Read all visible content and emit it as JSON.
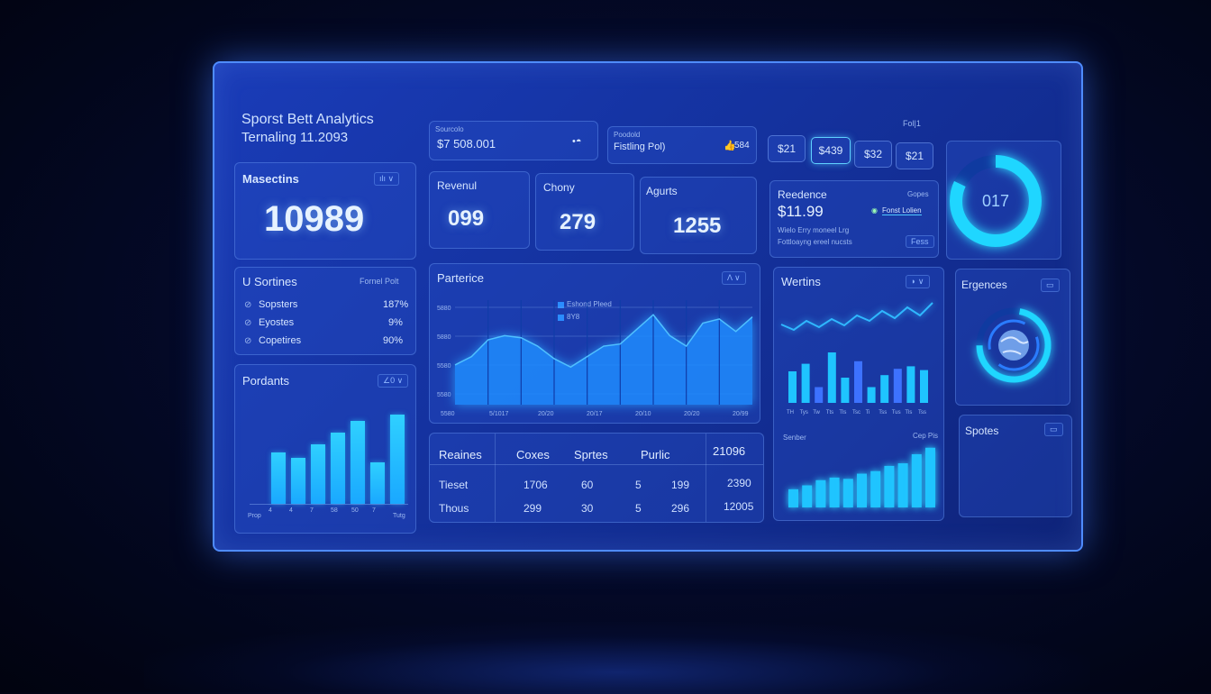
{
  "header": {
    "title": "Sporst Bett Analytics",
    "subtitle": "Ternaling 11.2093",
    "corner_label": "Fol|1"
  },
  "filters": [
    {
      "label": "Sourcolo",
      "value": "$7 508.001",
      "icon": "coin-icon"
    },
    {
      "label": "Poodold",
      "value": "Fistling Pol)",
      "icon": "thumb-icon",
      "extra": "584"
    }
  ],
  "chips": [
    "$21",
    "$439",
    "$32",
    "$21"
  ],
  "active_chip": 1,
  "donut": {
    "value": "017",
    "fraction": 0.82
  },
  "kpis": {
    "masectins": {
      "label": "Masectins",
      "value": "10989",
      "badge": "ılı ∨"
    },
    "revenul": {
      "label": "Revenul",
      "value": "099"
    },
    "chony": {
      "label": "Chony",
      "value": "279"
    },
    "agurts": {
      "label": "Agurts",
      "value": "1255"
    }
  },
  "reedence": {
    "label": "Reedence",
    "corner": "Gopes",
    "value": "$11.99",
    "link": "Fonst Lolien",
    "line1": "Wielo Erry moneel Lrg",
    "line2": "Fottloayng ereel nucsts",
    "tag": "Fess"
  },
  "sortines": {
    "title": "U Sortines",
    "col": "Fornel Polt",
    "rows": [
      {
        "label": "Sopsters",
        "value": "187%"
      },
      {
        "label": "Eyostes",
        "value": "9%"
      },
      {
        "label": "Copetires",
        "value": "90%"
      }
    ]
  },
  "pordants": {
    "title": "Pordants",
    "badge": "∠0 ∨",
    "values": [
      0.52,
      0.46,
      0.6,
      0.72,
      0.84,
      0.42,
      0.9
    ],
    "ticks": [
      "Prop",
      "4",
      "4",
      "7",
      "58",
      "50",
      "7",
      "Tutg"
    ]
  },
  "parterice": {
    "title": "Parterice",
    "badge": "Λ ∨",
    "legend": [
      "Eshond Pleed",
      "8Y8"
    ],
    "ylabels": [
      "5880",
      "5880",
      "5580",
      "5580"
    ],
    "xlabels": [
      "5580",
      "5/1017",
      "20/20",
      "20/17",
      "20/10",
      "20/20",
      "20/99"
    ],
    "series": [
      0.38,
      0.46,
      0.62,
      0.66,
      0.64,
      0.56,
      0.44,
      0.36,
      0.46,
      0.56,
      0.58,
      0.72,
      0.86,
      0.66,
      0.56,
      0.78,
      0.82,
      0.7,
      0.84
    ]
  },
  "table": {
    "headers": [
      "Reaines",
      "Coxes",
      "Sprtes",
      "Purlic",
      "21096"
    ],
    "rows": [
      [
        "Tieset",
        "1706",
        "60",
        "5",
        "199",
        "2390"
      ],
      [
        "Thous",
        "299",
        "30",
        "5",
        "296",
        "12005"
      ]
    ]
  },
  "wertins": {
    "title": "Wertins",
    "line": [
      0.42,
      0.3,
      0.5,
      0.36,
      0.54,
      0.4,
      0.62,
      0.5,
      0.72,
      0.56,
      0.8,
      0.62,
      0.9
    ],
    "bars": [
      0.5,
      0.62,
      0.25,
      0.8,
      0.4,
      0.66,
      0.25,
      0.44,
      0.54,
      0.58,
      0.52
    ],
    "ticks": [
      "TH",
      "Tys",
      "Tw",
      "Tts",
      "Tls",
      "Tsc",
      "Ti",
      "Tss",
      "Tus",
      "Tls",
      "Tss"
    ],
    "footer_left": "Senber",
    "footer_right": "Cep Pis",
    "bottom_bars": [
      0.28,
      0.34,
      0.42,
      0.46,
      0.44,
      0.52,
      0.56,
      0.64,
      0.68,
      0.82,
      0.92
    ]
  },
  "expences": {
    "title": "Ergences",
    "gauge": 0.72,
    "icon": "globe-icon"
  },
  "spotes": {
    "title": "Spotes"
  }
}
